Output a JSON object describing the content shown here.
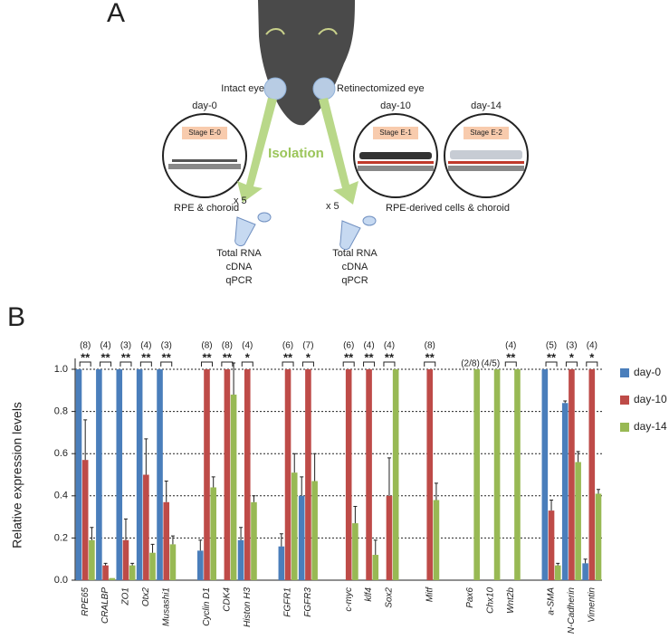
{
  "diagram": {
    "panel_label": "A",
    "intact_eye": "Intact eye",
    "retinectomized_eye": "Retinectomized eye",
    "stages": [
      {
        "day": "day-0",
        "stage": "Stage E-0"
      },
      {
        "day": "day-10",
        "stage": "Stage E-1"
      },
      {
        "day": "day-14",
        "stage": "Stage E-2"
      }
    ],
    "isolation": "Isolation",
    "left_count": "x 5",
    "right_count": "x 5",
    "left_sample": "RPE & choroid",
    "right_sample": "RPE-derived cells & choroid",
    "left_steps": [
      "Total RNA",
      "cDNA",
      "qPCR"
    ],
    "right_steps": [
      "Total RNA",
      "cDNA",
      "qPCR"
    ]
  },
  "chart_data": {
    "type": "bar",
    "panel_label": "B",
    "y_label": "Relative expression levels",
    "categories": [
      "RPE65",
      "CRALBP",
      "ZO1",
      "Otx2",
      "Musashi1",
      null,
      "Cyclin D1",
      "CDK4",
      "Histon H3",
      null,
      "FGFR1",
      "FGFR3",
      null,
      "c-myc",
      "klf4",
      "Sox2",
      null,
      "Mitf",
      null,
      "Pax6",
      "Chx10",
      "Wnt2b",
      null,
      "a-SMA",
      "N-Cadherin",
      "Vimentin"
    ],
    "series": [
      {
        "name": "day-0",
        "color": "#4a7ebb",
        "values": [
          1.0,
          1.0,
          1.0,
          1.0,
          1.0,
          null,
          0.14,
          null,
          0.19,
          null,
          0.16,
          0.4,
          null,
          null,
          null,
          null,
          null,
          null,
          null,
          null,
          null,
          null,
          null,
          1.0,
          0.84,
          0.08
        ],
        "errors": [
          null,
          null,
          null,
          null,
          null,
          null,
          0.05,
          null,
          0.06,
          null,
          0.06,
          0.09,
          null,
          null,
          null,
          null,
          null,
          null,
          null,
          null,
          null,
          null,
          null,
          null,
          0.01,
          0.02
        ]
      },
      {
        "name": "day-10",
        "color": "#be4b48",
        "values": [
          0.57,
          0.07,
          0.19,
          0.5,
          0.37,
          null,
          1.0,
          1.0,
          1.0,
          null,
          1.0,
          1.0,
          null,
          1.0,
          1.0,
          0.4,
          null,
          1.0,
          null,
          null,
          null,
          null,
          null,
          0.33,
          1.0,
          1.0
        ],
        "errors": [
          0.19,
          0.01,
          0.1,
          0.17,
          0.1,
          null,
          null,
          null,
          null,
          null,
          null,
          null,
          null,
          null,
          null,
          0.18,
          null,
          null,
          null,
          null,
          null,
          null,
          null,
          0.05,
          null,
          null
        ]
      },
      {
        "name": "day-14",
        "color": "#98b954",
        "values": [
          0.19,
          0.01,
          0.07,
          0.13,
          0.17,
          null,
          0.44,
          0.88,
          0.37,
          null,
          0.51,
          0.47,
          null,
          0.27,
          0.12,
          1.0,
          null,
          0.38,
          null,
          1.0,
          1.0,
          1.0,
          null,
          0.07,
          0.56,
          0.41
        ],
        "errors": [
          0.06,
          null,
          0.01,
          0.04,
          0.04,
          null,
          0.05,
          0.15,
          0.03,
          null,
          0.09,
          0.13,
          null,
          0.08,
          0.07,
          null,
          null,
          0.08,
          null,
          null,
          null,
          null,
          null,
          0.01,
          0.05,
          0.02
        ]
      }
    ],
    "n_labels": [
      "(8)",
      "(4)",
      "(3)",
      "(4)",
      "(3)",
      null,
      "(8)",
      "(8)",
      "(4)",
      null,
      "(6)",
      "(7)",
      null,
      "(6)",
      "(4)",
      "(4)",
      null,
      "(8)",
      null,
      "(2/8)",
      "(4/5)",
      "(4)",
      null,
      "(5)",
      "(3)",
      "(4)"
    ],
    "significance": [
      "**",
      "**",
      "**",
      "**",
      "**",
      null,
      "**",
      "**",
      "*",
      null,
      "**",
      "*",
      null,
      "**",
      "**",
      "**",
      null,
      "**",
      null,
      null,
      null,
      "**",
      null,
      "**",
      "*",
      "*"
    ],
    "ylim": [
      0,
      1.0
    ],
    "yticks": [
      {
        "value": 0,
        "label": "0.0"
      },
      0.2,
      0.4,
      0.6,
      0.8,
      {
        "value": 1.0,
        "label": "1.0"
      }
    ],
    "grid": true,
    "legend": "right"
  }
}
